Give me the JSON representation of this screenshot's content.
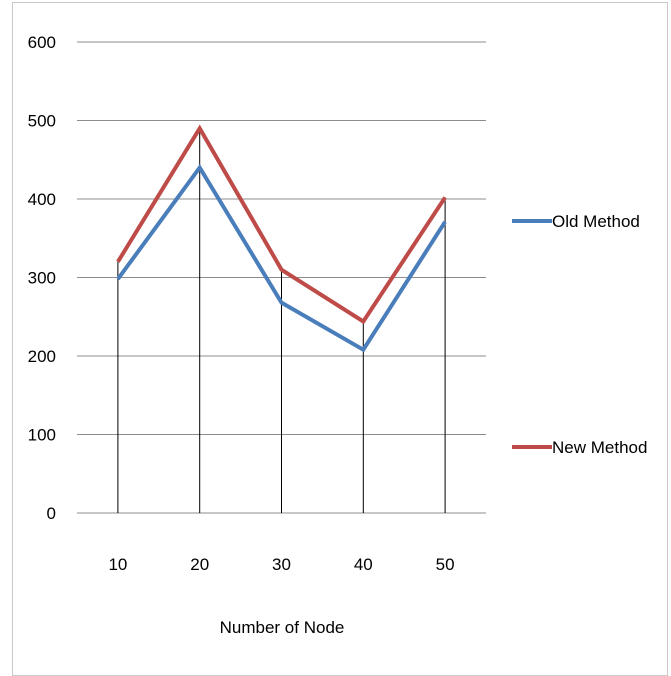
{
  "chart_data": {
    "type": "line",
    "title": "",
    "xlabel": "Number of Node",
    "ylabel": "",
    "categories": [
      "10",
      "20",
      "30",
      "40",
      "50"
    ],
    "ylim": [
      0,
      600
    ],
    "yticks": [
      0,
      100,
      200,
      300,
      400,
      500,
      600
    ],
    "grid": true,
    "legend_position": "right",
    "series": [
      {
        "name": "Old Method",
        "color": "#4a7ebb",
        "values": [
          298,
          440,
          268,
          208,
          371
        ]
      },
      {
        "name": "New Method",
        "color": "#be4b48",
        "values": [
          320,
          490,
          310,
          244,
          402
        ]
      }
    ]
  }
}
